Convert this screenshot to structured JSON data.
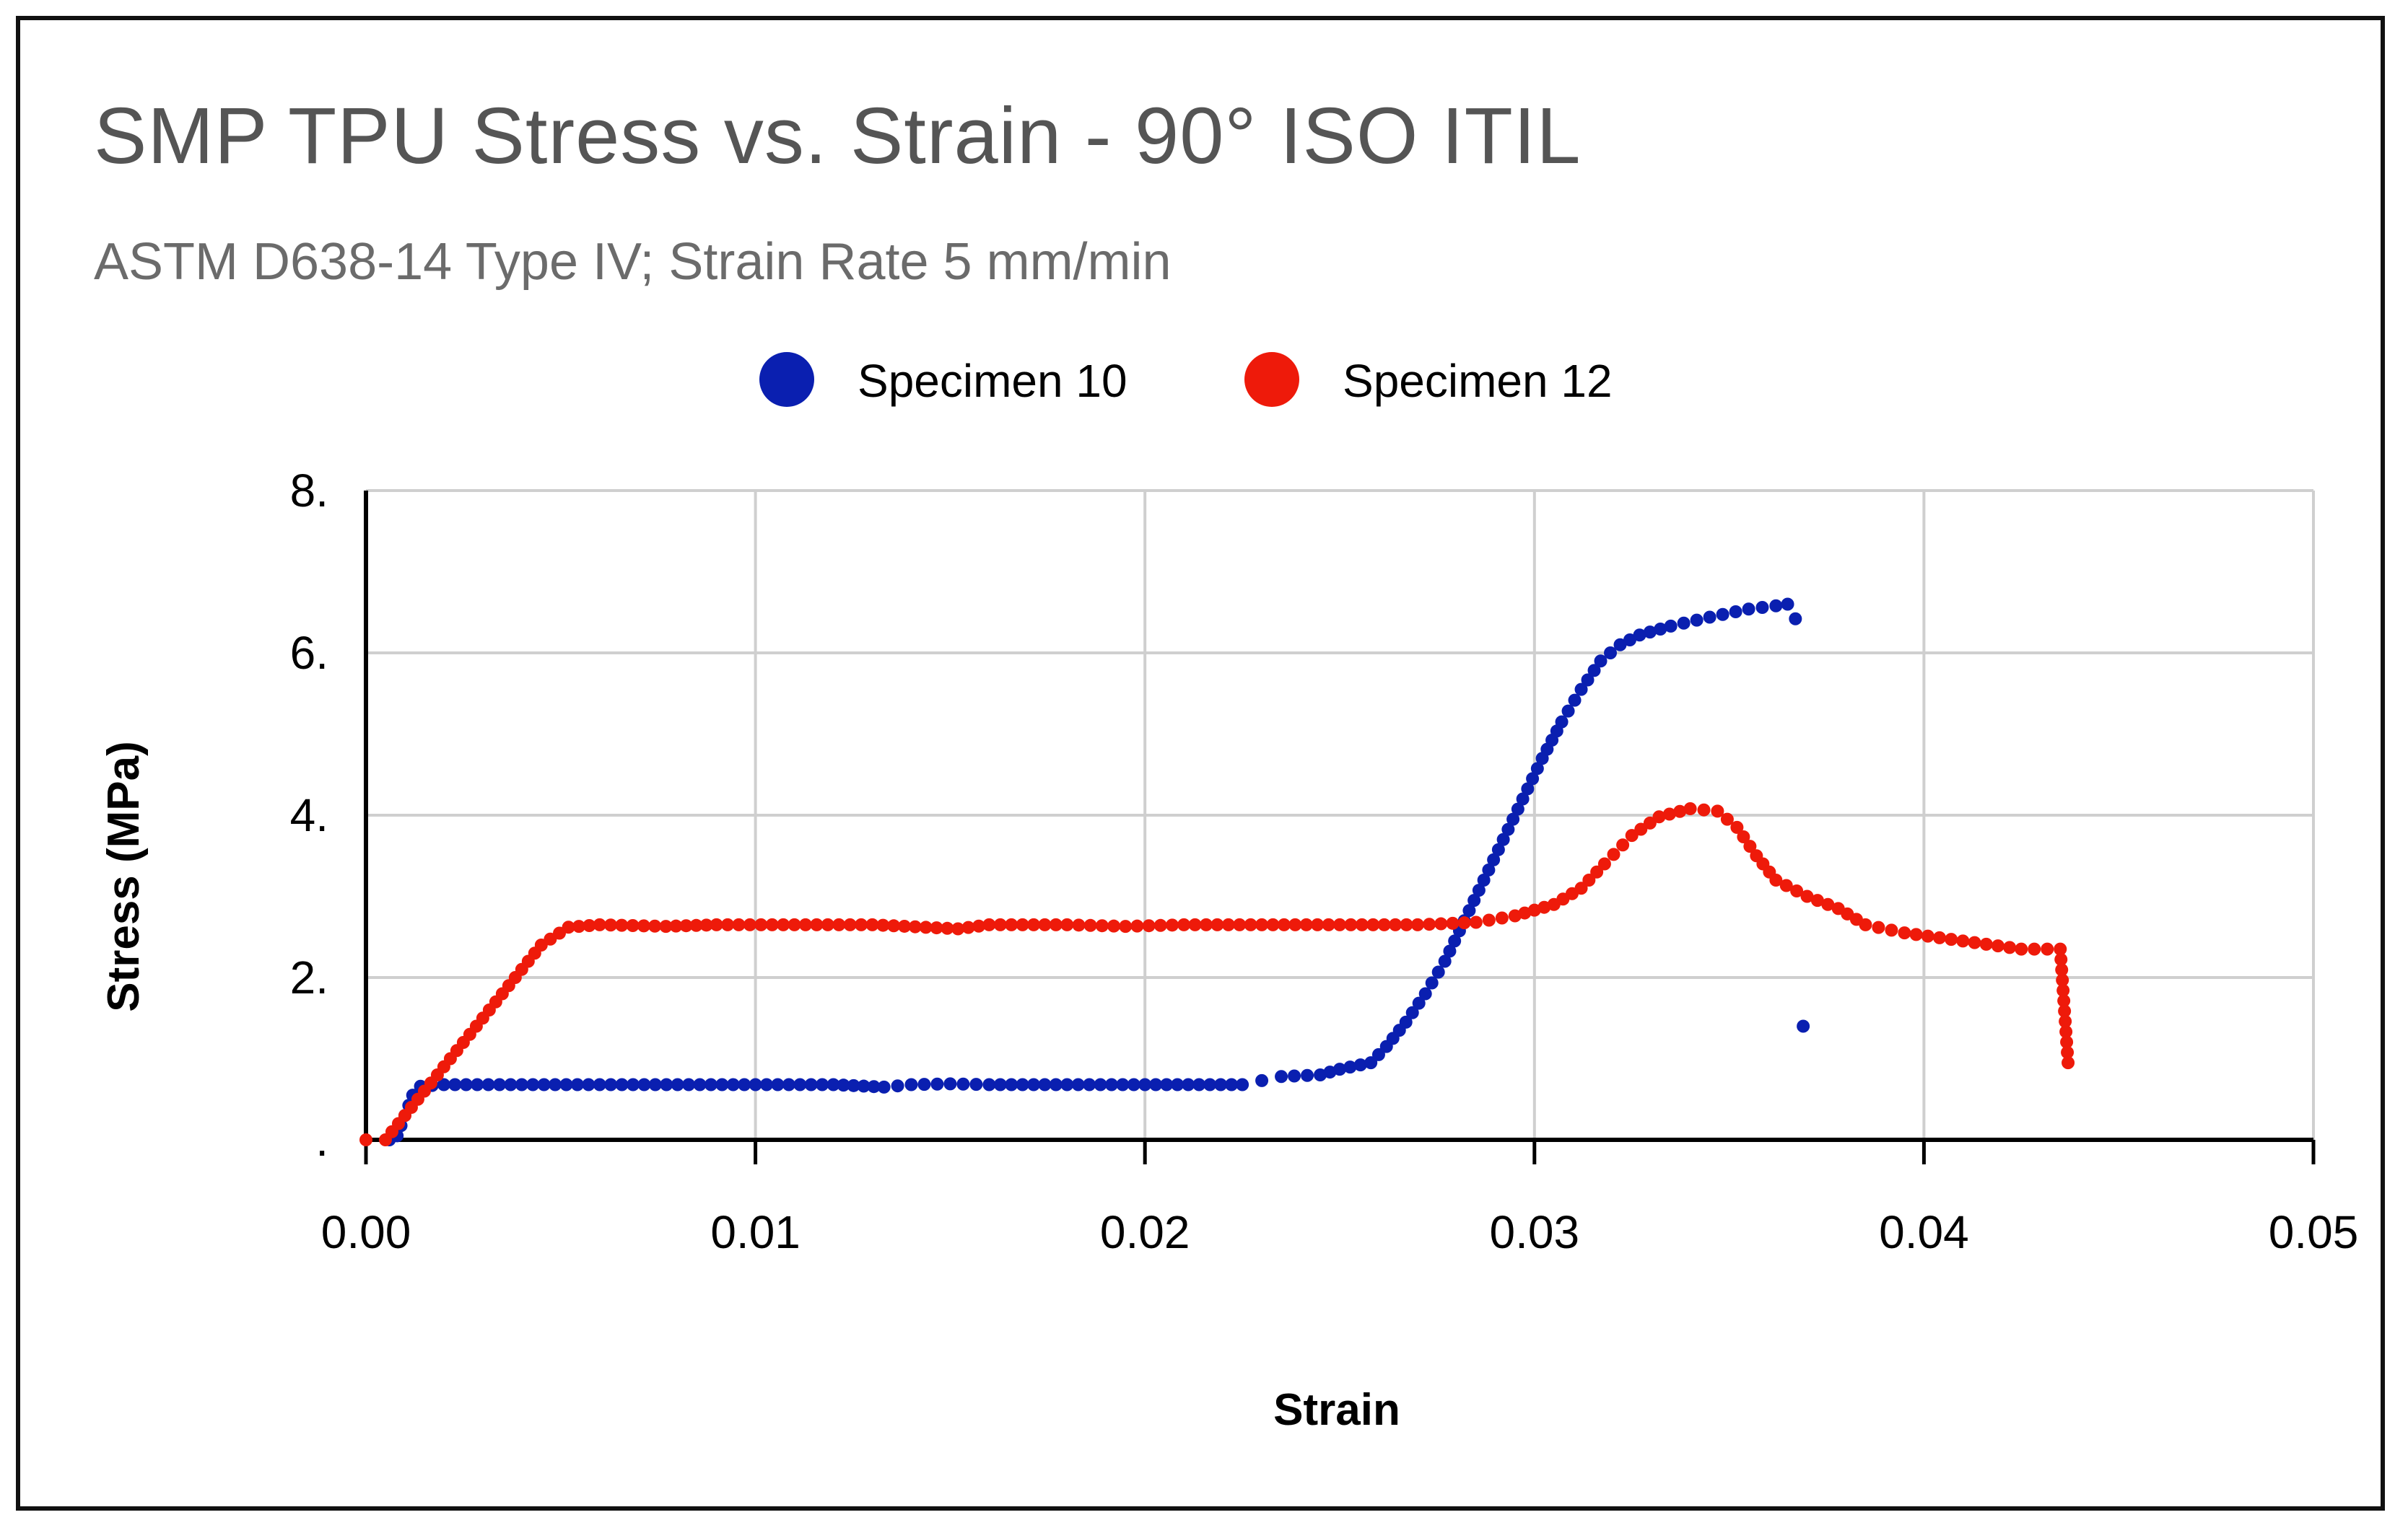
{
  "chart_data": {
    "type": "scatter",
    "title": "SMP TPU Stress vs. Strain - 90° ISO ITIL",
    "subtitle": "ASTM D638-14 Type IV; Strain Rate 5 mm/min",
    "xlabel": "Strain",
    "ylabel": "Stress (MPa)",
    "xlim": [
      0,
      0.05
    ],
    "ylim": [
      0,
      8
    ],
    "grid": true,
    "legend_position": "top-center",
    "x_ticks": [
      {
        "value": 0.0,
        "label": "0.00"
      },
      {
        "value": 0.01,
        "label": "0.01"
      },
      {
        "value": 0.02,
        "label": "0.02"
      },
      {
        "value": 0.03,
        "label": "0.03"
      },
      {
        "value": 0.04,
        "label": "0.04"
      },
      {
        "value": 0.05,
        "label": "0.05"
      }
    ],
    "y_ticks": [
      {
        "value": 0,
        "label": "."
      },
      {
        "value": 2,
        "label": "2."
      },
      {
        "value": 4,
        "label": "4."
      },
      {
        "value": 6,
        "label": "6."
      },
      {
        "value": 8,
        "label": "8."
      }
    ],
    "series": [
      {
        "name": "Specimen 10",
        "color": "#0a1fb0",
        "points": [
          [
            0.0006,
            0.0
          ],
          [
            0.0008,
            0.05
          ],
          [
            0.001,
            0.3
          ],
          [
            0.0012,
            0.55
          ],
          [
            0.0014,
            0.66
          ],
          [
            0.002,
            0.68
          ],
          [
            0.004,
            0.68
          ],
          [
            0.006,
            0.68
          ],
          [
            0.008,
            0.68
          ],
          [
            0.01,
            0.68
          ],
          [
            0.012,
            0.68
          ],
          [
            0.0133,
            0.65
          ],
          [
            0.014,
            0.68
          ],
          [
            0.015,
            0.69
          ],
          [
            0.016,
            0.68
          ],
          [
            0.018,
            0.68
          ],
          [
            0.02,
            0.68
          ],
          [
            0.0225,
            0.68
          ],
          [
            0.023,
            0.73
          ],
          [
            0.0235,
            0.78
          ],
          [
            0.0245,
            0.8
          ],
          [
            0.025,
            0.87
          ],
          [
            0.0258,
            0.95
          ],
          [
            0.0262,
            1.15
          ],
          [
            0.0267,
            1.45
          ],
          [
            0.0272,
            1.8
          ],
          [
            0.0277,
            2.2
          ],
          [
            0.0282,
            2.7
          ],
          [
            0.0287,
            3.2
          ],
          [
            0.0292,
            3.7
          ],
          [
            0.0297,
            4.2
          ],
          [
            0.0302,
            4.7
          ],
          [
            0.0307,
            5.15
          ],
          [
            0.0312,
            5.55
          ],
          [
            0.0317,
            5.9
          ],
          [
            0.0322,
            6.1
          ],
          [
            0.0327,
            6.22
          ],
          [
            0.0335,
            6.33
          ],
          [
            0.0345,
            6.44
          ],
          [
            0.0355,
            6.54
          ],
          [
            0.0362,
            6.58
          ],
          [
            0.0365,
            6.6
          ],
          [
            0.0367,
            6.42
          ],
          [
            0.0369,
            1.4
          ]
        ]
      },
      {
        "name": "Specimen 12",
        "color": "#ee1a0a",
        "points": [
          [
            0.0,
            0.0
          ],
          [
            0.0005,
            0.0
          ],
          [
            0.001,
            0.3
          ],
          [
            0.0015,
            0.6
          ],
          [
            0.002,
            0.9
          ],
          [
            0.0025,
            1.2
          ],
          [
            0.003,
            1.5
          ],
          [
            0.0035,
            1.8
          ],
          [
            0.004,
            2.1
          ],
          [
            0.0045,
            2.4
          ],
          [
            0.0052,
            2.62
          ],
          [
            0.006,
            2.65
          ],
          [
            0.0077,
            2.63
          ],
          [
            0.009,
            2.65
          ],
          [
            0.011,
            2.65
          ],
          [
            0.013,
            2.65
          ],
          [
            0.0152,
            2.6
          ],
          [
            0.016,
            2.65
          ],
          [
            0.018,
            2.65
          ],
          [
            0.0195,
            2.63
          ],
          [
            0.021,
            2.65
          ],
          [
            0.023,
            2.65
          ],
          [
            0.025,
            2.65
          ],
          [
            0.027,
            2.65
          ],
          [
            0.0285,
            2.68
          ],
          [
            0.0295,
            2.76
          ],
          [
            0.0305,
            2.9
          ],
          [
            0.0312,
            3.1
          ],
          [
            0.0318,
            3.4
          ],
          [
            0.0325,
            3.75
          ],
          [
            0.0332,
            3.98
          ],
          [
            0.034,
            4.08
          ],
          [
            0.0347,
            4.05
          ],
          [
            0.0352,
            3.85
          ],
          [
            0.0357,
            3.5
          ],
          [
            0.0362,
            3.2
          ],
          [
            0.037,
            3.0
          ],
          [
            0.0378,
            2.85
          ],
          [
            0.0385,
            2.65
          ],
          [
            0.0395,
            2.55
          ],
          [
            0.041,
            2.45
          ],
          [
            0.0425,
            2.35
          ],
          [
            0.0435,
            2.35
          ],
          [
            0.0437,
            0.95
          ]
        ]
      }
    ]
  }
}
